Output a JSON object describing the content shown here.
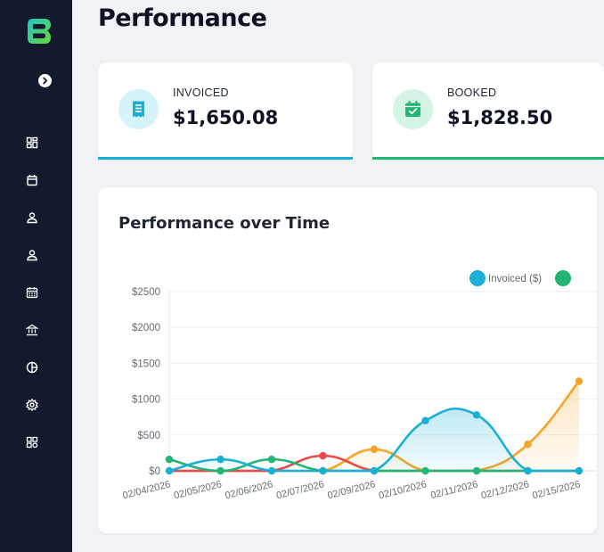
{
  "page": {
    "title": "Performance"
  },
  "colors": {
    "sidebar_bg": "#141a2e",
    "invoiced": "#1ab0d5",
    "booked": "#22b573",
    "red_series": "#e84a4a",
    "orange_series": "#f5a524"
  },
  "sidebar": {
    "items": [
      {
        "icon": "dashboard-icon"
      },
      {
        "icon": "calendar-icon"
      },
      {
        "icon": "user-icon"
      },
      {
        "icon": "user-icon"
      },
      {
        "icon": "calendar-grid-icon"
      },
      {
        "icon": "bank-icon"
      },
      {
        "icon": "pie-chart-icon"
      },
      {
        "icon": "settings-icon"
      },
      {
        "icon": "apps-icon"
      }
    ]
  },
  "cards": [
    {
      "label": "INVOICED",
      "value": "$1,650.08",
      "icon": "receipt-icon",
      "color": "#1ab0d5",
      "bg": "#d5f3fb"
    },
    {
      "label": "BOOKED",
      "value": "$1,828.50",
      "icon": "calendar-check-icon",
      "color": "#22b573",
      "bg": "#d4f5e4"
    }
  ],
  "chart_data": {
    "type": "area",
    "title": "Performance over Time",
    "categories": [
      "02/04/2026",
      "02/05/2026",
      "02/06/2026",
      "02/07/2026",
      "02/09/2026",
      "02/10/2026",
      "02/11/2026",
      "02/12/2026",
      "02/15/2026"
    ],
    "yticks": [
      "$0",
      "$500",
      "$1000",
      "$1500",
      "$2000",
      "$2500"
    ],
    "ylim": [
      0,
      2500
    ],
    "legend_placement": "top-right",
    "series": [
      {
        "name": "Invoiced ($)",
        "color": "#1ab0d5",
        "values": [
          0,
          160,
          0,
          0,
          0,
          700,
          780,
          0,
          0
        ],
        "fill": true
      },
      {
        "name": "",
        "color": "#22b573",
        "values": [
          160,
          0,
          160,
          0,
          0,
          0,
          0,
          0,
          0
        ],
        "fill": false
      },
      {
        "name": "",
        "color": "#e84a4a",
        "values": [
          0,
          0,
          0,
          210,
          0,
          0,
          0,
          0,
          0
        ],
        "fill": false
      },
      {
        "name": "",
        "color": "#f5a524",
        "values": [
          0,
          0,
          0,
          0,
          300,
          0,
          0,
          370,
          1250
        ],
        "fill": true
      }
    ]
  }
}
